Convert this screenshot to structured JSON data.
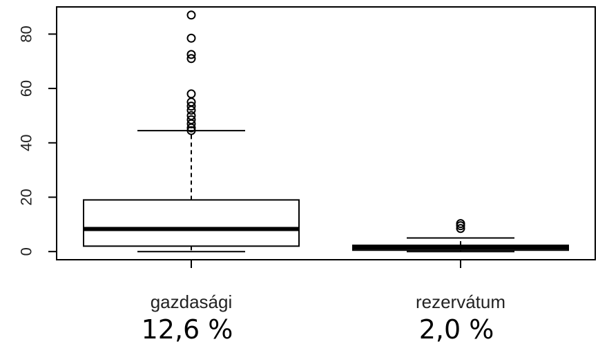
{
  "chart_data": {
    "type": "boxplot",
    "ylim": [
      -3,
      90
    ],
    "yticks": [
      {
        "value": 0,
        "label": "0"
      },
      {
        "value": 20,
        "label": "20"
      },
      {
        "value": 40,
        "label": "40"
      },
      {
        "value": 60,
        "label": "60"
      },
      {
        "value": 80,
        "label": "80"
      }
    ],
    "boxes": [
      {
        "name": "gazdasági",
        "percent_label": "12,6 %",
        "min": 0,
        "q1": 2,
        "median": 8.3,
        "q3": 19,
        "max": 44.5,
        "outliers": [
          44.5,
          45.5,
          47,
          48.5,
          50,
          52,
          53.5,
          55,
          58,
          71,
          72.5,
          78.5,
          87
        ]
      },
      {
        "name": "rezervátum",
        "percent_label": "2,0 %",
        "min": 0,
        "q1": 0.5,
        "median": 1.5,
        "q3": 2.3,
        "max": 5,
        "outliers": [
          8.5,
          9.5,
          10.3
        ]
      }
    ],
    "grid": false,
    "legend": "none",
    "colors": {
      "stroke": "#000000",
      "background": "#ffffff"
    }
  }
}
